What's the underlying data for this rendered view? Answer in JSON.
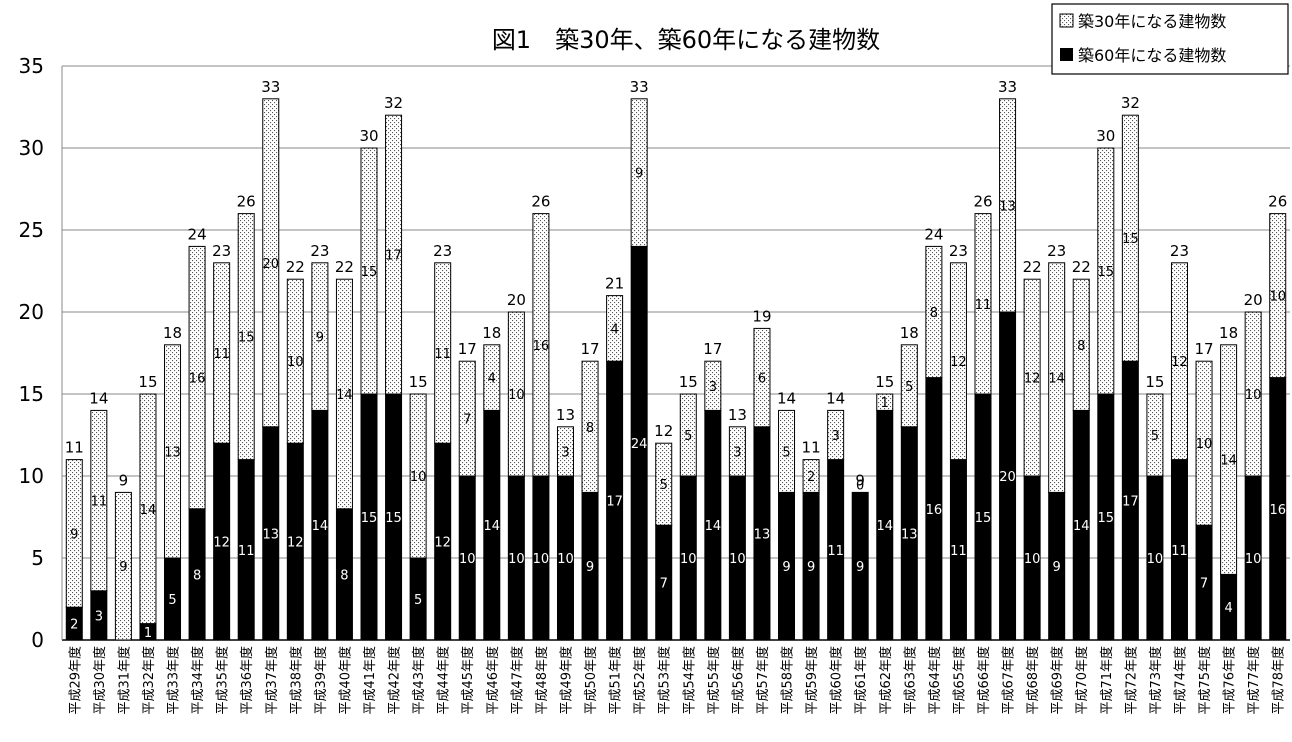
{
  "chart_data": {
    "type": "bar",
    "stacked": true,
    "title": "図1　築30年、築60年になる建物数",
    "ylim": [
      0,
      35
    ],
    "yticks": [
      0,
      5,
      10,
      15,
      20,
      25,
      30,
      35
    ],
    "grid": true,
    "legend_position": "top-right",
    "categories": [
      "平成29年度",
      "平成30年度",
      "平成31年度",
      "平成32年度",
      "平成33年度",
      "平成34年度",
      "平成35年度",
      "平成36年度",
      "平成37年度",
      "平成38年度",
      "平成39年度",
      "平成40年度",
      "平成41年度",
      "平成42年度",
      "平成43年度",
      "平成44年度",
      "平成45年度",
      "平成46年度",
      "平成47年度",
      "平成48年度",
      "平成49年度",
      "平成50年度",
      "平成51年度",
      "平成52年度",
      "平成53年度",
      "平成54年度",
      "平成55年度",
      "平成56年度",
      "平成57年度",
      "平成58年度",
      "平成59年度",
      "平成60年度",
      "平成61年度",
      "平成62年度",
      "平成63年度",
      "平成64年度",
      "平成65年度",
      "平成66年度",
      "平成67年度",
      "平成68年度",
      "平成69年度",
      "平成70年度",
      "平成71年度",
      "平成72年度",
      "平成73年度",
      "平成74年度",
      "平成75年度",
      "平成76年度",
      "平成77年度",
      "平成78年度"
    ],
    "series": [
      {
        "name": "築60年になる建物数",
        "color": "#000000",
        "values": [
          2,
          3,
          0,
          1,
          5,
          8,
          12,
          11,
          13,
          12,
          14,
          8,
          15,
          15,
          5,
          12,
          10,
          14,
          10,
          10,
          10,
          9,
          17,
          24,
          7,
          10,
          14,
          10,
          13,
          9,
          9,
          11,
          9,
          14,
          13,
          16,
          11,
          15,
          20,
          10,
          9,
          14,
          15,
          17,
          10,
          11,
          7,
          4,
          10,
          16
        ]
      },
      {
        "name": "築30年になる建物数",
        "color": "#ffffff",
        "pattern": "dotted",
        "values": [
          9,
          11,
          9,
          14,
          13,
          16,
          11,
          15,
          20,
          10,
          9,
          14,
          15,
          17,
          10,
          11,
          7,
          4,
          10,
          16,
          3,
          8,
          4,
          9,
          5,
          5,
          3,
          3,
          6,
          5,
          2,
          3,
          0,
          1,
          5,
          8,
          12,
          11,
          13,
          12,
          14,
          8,
          15,
          15,
          5,
          12,
          10,
          14,
          10,
          10
        ]
      }
    ],
    "totals": [
      11,
      14,
      9,
      15,
      18,
      24,
      23,
      26,
      33,
      22,
      23,
      22,
      30,
      32,
      15,
      23,
      17,
      18,
      20,
      26,
      13,
      17,
      21,
      33,
      12,
      15,
      17,
      13,
      19,
      14,
      11,
      14,
      9,
      15,
      18,
      24,
      23,
      26,
      33,
      22,
      23,
      22,
      30,
      32,
      15,
      23,
      17,
      18,
      20,
      26
    ]
  }
}
